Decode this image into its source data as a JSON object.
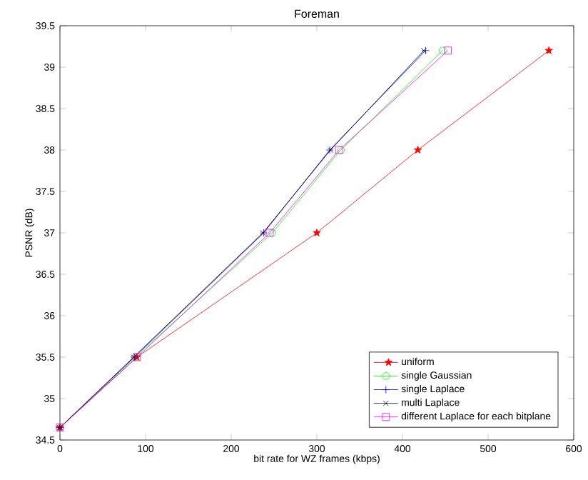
{
  "chart_data": {
    "type": "line",
    "title": "Foreman",
    "xlabel": "bit rate for WZ frames (kbps)",
    "ylabel": "PSNR (dB)",
    "xlim": [
      0,
      600
    ],
    "ylim": [
      34.5,
      39.5
    ],
    "xticks": [
      0,
      100,
      200,
      300,
      400,
      500,
      600
    ],
    "yticks": [
      34.5,
      35,
      35.5,
      36,
      36.5,
      37,
      37.5,
      38,
      38.5,
      39,
      39.5
    ],
    "legend": "bottom right",
    "grid": false,
    "series": [
      {
        "name": "uniform",
        "color": "#ff0000",
        "marker": "star",
        "x": [
          0,
          90,
          300,
          418,
          571
        ],
        "values": [
          34.65,
          35.5,
          37,
          38,
          39.2
        ]
      },
      {
        "name": "single Gaussian",
        "color": "#00ff00",
        "marker": "circle",
        "x": [
          0,
          88,
          248,
          328,
          447
        ],
        "values": [
          34.65,
          35.5,
          37,
          38,
          39.2
        ]
      },
      {
        "name": "single Laplace",
        "color": "#0000ff",
        "marker": "plus",
        "x": [
          0,
          87,
          238,
          315,
          427
        ],
        "values": [
          34.65,
          35.5,
          37,
          38,
          39.2
        ]
      },
      {
        "name": "multi Laplace",
        "color": "#000000",
        "marker": "cross",
        "x": [
          0,
          86,
          237,
          316,
          425
        ],
        "values": [
          34.65,
          35.5,
          37,
          38,
          39.2
        ]
      },
      {
        "name": "different Laplace for each bitplane",
        "color": "#ff00ff",
        "marker": "square",
        "x": [
          0,
          90,
          245,
          326,
          453
        ],
        "values": [
          34.65,
          35.5,
          37,
          38,
          39.2
        ]
      }
    ]
  }
}
